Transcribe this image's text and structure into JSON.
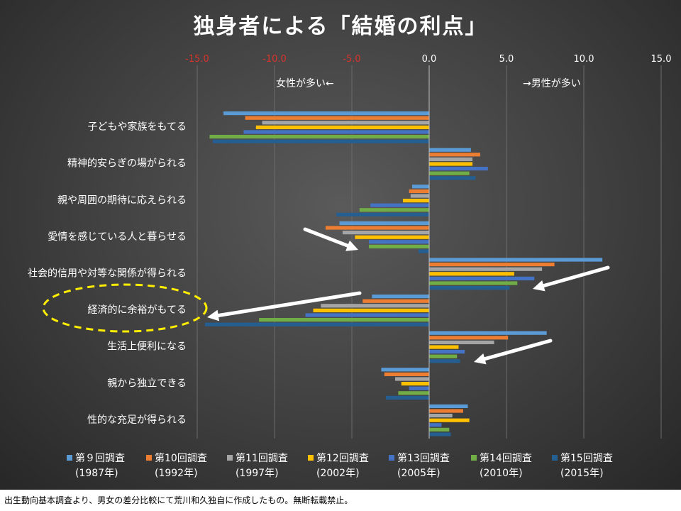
{
  "chart_data": {
    "type": "bar",
    "orientation": "horizontal",
    "title": "独身者による「結婚の利点」",
    "xlim": [
      -15,
      15
    ],
    "xticks": [
      "-15.0",
      "-10.0",
      "-5.0",
      "0.0",
      "5.0",
      "10.0",
      "15.0"
    ],
    "tick_colors": [
      "#d9342b",
      "#d9342b",
      "#d9342b",
      "#ffffff",
      "#ffffff",
      "#ffffff",
      "#ffffff"
    ],
    "annotations": {
      "left": "女性が多い←",
      "right": "→男性が多い"
    },
    "categories": [
      "子どもや家族をもてる",
      "精神的安らぎの場がられる",
      "親や周囲の期待に応えられる",
      "愛情を感じている人と暮らせる",
      "社会的信用や対等な関係が得られる",
      "経済的に余裕がもてる",
      "生活上便利になる",
      "親から独立できる",
      "性的な充足が得られる"
    ],
    "series": [
      {
        "name": "第９回調査",
        "period": "(1987年)",
        "color": "#5b9bd5",
        "values": [
          -13.3,
          2.7,
          -1.1,
          -5.8,
          11.2,
          -3.7,
          7.6,
          -3.1,
          2.5
        ]
      },
      {
        "name": "第10回調査",
        "period": "(1992年)",
        "color": "#ed7d31",
        "values": [
          -11.9,
          3.3,
          -1.3,
          -6.7,
          8.1,
          -4.3,
          5.1,
          -2.9,
          2.2
        ]
      },
      {
        "name": "第11回調査",
        "period": "(1997年)",
        "color": "#a5a5a5",
        "values": [
          -10.8,
          2.8,
          -1.2,
          -5.6,
          7.3,
          -7.0,
          4.2,
          -2.2,
          1.5
        ]
      },
      {
        "name": "第12回調査",
        "period": "(2002年)",
        "color": "#ffc000",
        "values": [
          -11.2,
          2.8,
          -1.7,
          -4.8,
          5.5,
          -7.5,
          1.9,
          -1.8,
          2.6
        ]
      },
      {
        "name": "第13回調査",
        "period": "(2005年)",
        "color": "#4472c4",
        "values": [
          -12.0,
          3.8,
          -3.8,
          -3.9,
          6.8,
          -8.0,
          2.3,
          -1.3,
          0.8
        ]
      },
      {
        "name": "第14回調査",
        "period": "(2010年)",
        "color": "#70ad47",
        "values": [
          -14.2,
          2.6,
          -4.5,
          -3.9,
          5.7,
          -11.0,
          1.8,
          -2.0,
          1.3
        ]
      },
      {
        "name": "第15回調査",
        "period": "(2015年)",
        "color": "#255e91",
        "values": [
          -14.0,
          3.0,
          -6.0,
          -0.7,
          5.2,
          -14.5,
          2.0,
          -2.8,
          1.4
        ]
      }
    ]
  },
  "footer": {
    "note": "出生動向基本調査より、男女の差分比較にて荒川和久独自に作成したもの。無断転載禁止。"
  }
}
